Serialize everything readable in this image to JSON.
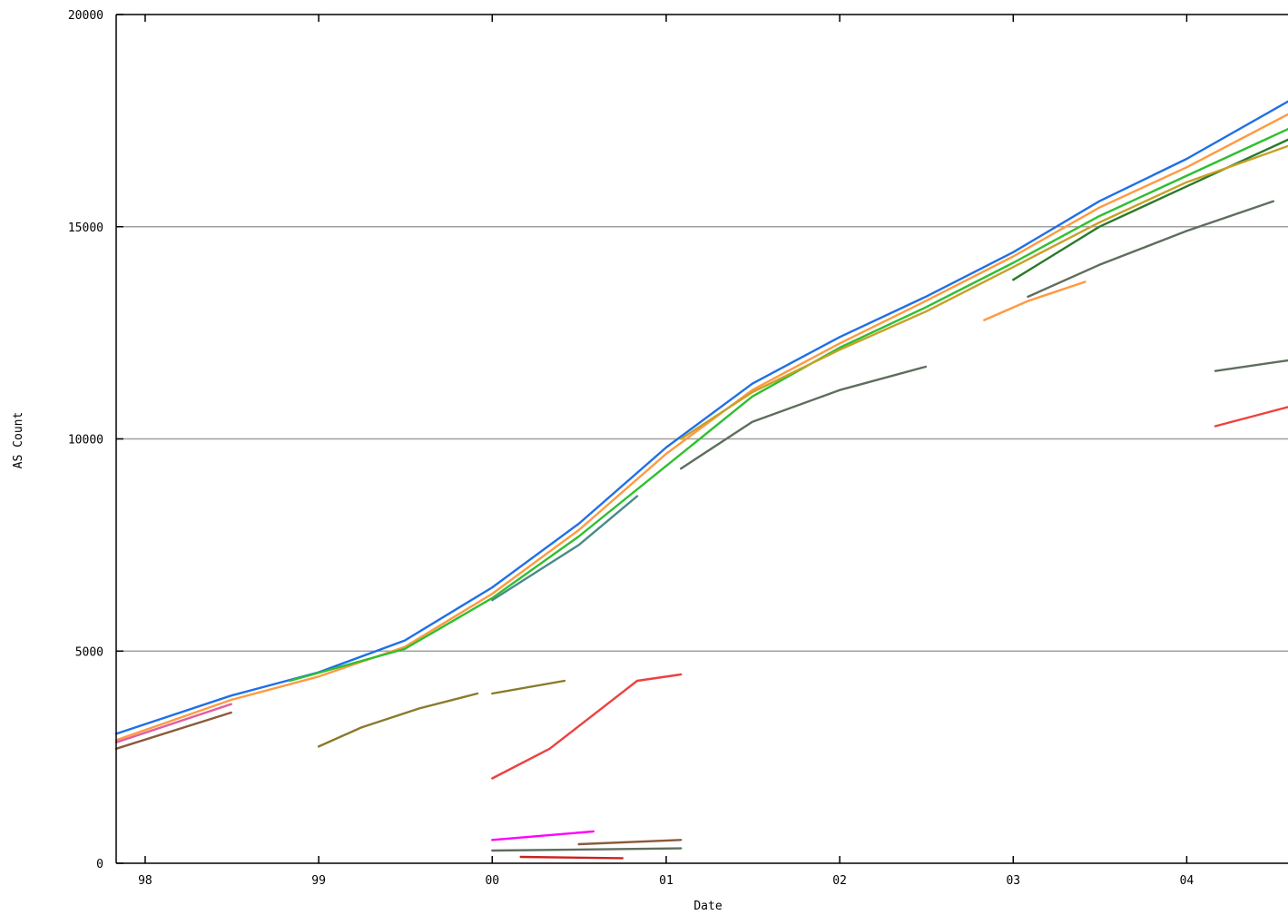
{
  "chart_data": {
    "type": "scatter",
    "title": "",
    "xlabel": "Date",
    "ylabel": "AS Count",
    "xlim": [
      "1997-11-01",
      "2004-08-01"
    ],
    "ylim": [
      0,
      20000
    ],
    "grid": "horizontal",
    "legend": "none",
    "x_ticks": [
      {
        "label": "98",
        "date": "1998-01-01"
      },
      {
        "label": "99",
        "date": "1999-01-01"
      },
      {
        "label": "00",
        "date": "2000-01-01"
      },
      {
        "label": "01",
        "date": "2001-01-01"
      },
      {
        "label": "02",
        "date": "2002-01-01"
      },
      {
        "label": "03",
        "date": "2003-01-01"
      },
      {
        "label": "04",
        "date": "2004-01-01"
      }
    ],
    "y_ticks": [
      {
        "label": "0",
        "value": 0
      },
      {
        "label": "5000",
        "value": 5000
      },
      {
        "label": "10000",
        "value": 10000
      },
      {
        "label": "15000",
        "value": 15000
      },
      {
        "label": "20000",
        "value": 20000
      }
    ],
    "series": [
      {
        "color": "#1f6fe8",
        "points": [
          [
            "1997-11-01",
            3050
          ],
          [
            "1998-07-01",
            3950
          ],
          [
            "1999-01-01",
            4500
          ],
          [
            "1999-07-01",
            5250
          ],
          [
            "2000-01-01",
            6500
          ],
          [
            "2000-07-01",
            8000
          ],
          [
            "2001-01-01",
            9800
          ],
          [
            "2001-07-01",
            11300
          ],
          [
            "2002-01-01",
            12400
          ],
          [
            "2002-07-01",
            13350
          ],
          [
            "2003-01-01",
            14400
          ],
          [
            "2003-07-01",
            15600
          ],
          [
            "2004-01-01",
            16600
          ],
          [
            "2004-08-01",
            17950
          ]
        ]
      },
      {
        "color": "#ff9940",
        "points": [
          [
            "1997-11-01",
            2900
          ],
          [
            "1998-07-01",
            3850
          ],
          [
            "1999-01-01",
            4400
          ],
          [
            "1999-07-01",
            5100
          ],
          [
            "2000-01-01",
            6350
          ],
          [
            "2000-07-01",
            7850
          ],
          [
            "2001-01-01",
            9650
          ],
          [
            "2001-07-01",
            11150
          ],
          [
            "2002-01-01",
            12250
          ],
          [
            "2002-07-01",
            13250
          ],
          [
            "2003-01-01",
            14300
          ],
          [
            "2003-07-01",
            15450
          ],
          [
            "2004-01-01",
            16400
          ],
          [
            "2004-08-01",
            17650
          ]
        ]
      },
      {
        "color": "#2fbf2f",
        "points": [
          [
            "1998-11-01",
            4300
          ],
          [
            "1999-07-01",
            5050
          ],
          [
            "2000-01-01",
            6250
          ],
          [
            "2000-07-01",
            7700
          ],
          [
            "2001-07-01",
            11000
          ],
          [
            "2002-01-01",
            12150
          ],
          [
            "2002-07-01",
            13100
          ],
          [
            "2003-01-01",
            14150
          ],
          [
            "2003-07-01",
            15250
          ],
          [
            "2004-01-01",
            16200
          ],
          [
            "2004-08-01",
            17300
          ]
        ]
      },
      {
        "color": "#2a7a2a",
        "points": [
          [
            "2003-01-01",
            13750
          ],
          [
            "2003-07-01",
            15000
          ],
          [
            "2004-01-01",
            15950
          ],
          [
            "2004-08-01",
            17050
          ]
        ]
      },
      {
        "color": "#c8a028",
        "points": [
          [
            "2001-02-01",
            10000
          ],
          [
            "2001-07-01",
            11100
          ],
          [
            "2002-01-01",
            12100
          ],
          [
            "2002-07-01",
            13000
          ],
          [
            "2003-01-01",
            14050
          ],
          [
            "2003-07-01",
            15100
          ],
          [
            "2004-01-01",
            16050
          ],
          [
            "2004-08-01",
            16900
          ]
        ]
      },
      {
        "color": "#8a5a3a",
        "points": [
          [
            "1997-11-01",
            2700
          ],
          [
            "1998-07-01",
            3550
          ]
        ]
      },
      {
        "color": "#e060a0",
        "points": [
          [
            "1997-11-01",
            2850
          ],
          [
            "1998-07-01",
            3750
          ]
        ]
      },
      {
        "color": "#4a8a8a",
        "points": [
          [
            "2000-01-01",
            6200
          ],
          [
            "2000-07-01",
            7500
          ],
          [
            "2000-11-01",
            8650
          ]
        ]
      },
      {
        "color": "#5e6e5e",
        "points": [
          [
            "2001-02-01",
            9300
          ],
          [
            "2001-07-01",
            10400
          ],
          [
            "2002-01-01",
            11150
          ],
          [
            "2002-07-01",
            11700
          ]
        ]
      },
      {
        "color": "#5e6e5e",
        "points": [
          [
            "2003-02-01",
            13350
          ],
          [
            "2003-07-01",
            14100
          ],
          [
            "2004-01-01",
            14900
          ],
          [
            "2004-07-01",
            15600
          ]
        ]
      },
      {
        "color": "#ff9940",
        "points": [
          [
            "2002-11-01",
            12800
          ],
          [
            "2003-02-01",
            13250
          ],
          [
            "2003-06-01",
            13700
          ]
        ]
      },
      {
        "color": "#8a7a2a",
        "points": [
          [
            "1999-01-01",
            2750
          ],
          [
            "1999-04-01",
            3200
          ],
          [
            "1999-08-01",
            3650
          ],
          [
            "1999-12-01",
            4000
          ]
        ]
      },
      {
        "color": "#8a7a2a",
        "points": [
          [
            "2000-01-01",
            4000
          ],
          [
            "2000-06-01",
            4300
          ]
        ]
      },
      {
        "color": "#ee4040",
        "points": [
          [
            "2000-01-01",
            2000
          ],
          [
            "2000-05-01",
            2700
          ],
          [
            "2000-08-01",
            3500
          ],
          [
            "2000-11-01",
            4300
          ],
          [
            "2001-02-01",
            4450
          ]
        ]
      },
      {
        "color": "#ee4040",
        "points": [
          [
            "2004-03-01",
            10300
          ],
          [
            "2004-08-01",
            10750
          ]
        ]
      },
      {
        "color": "#5e6e5e",
        "points": [
          [
            "2004-03-01",
            11600
          ],
          [
            "2004-08-01",
            11850
          ]
        ]
      },
      {
        "color": "#ff00ff",
        "points": [
          [
            "2000-01-01",
            550
          ],
          [
            "2000-08-01",
            750
          ]
        ]
      },
      {
        "color": "#8a5a3a",
        "points": [
          [
            "2000-07-01",
            450
          ],
          [
            "2001-02-01",
            550
          ]
        ]
      },
      {
        "color": "#5e6e5e",
        "points": [
          [
            "2000-01-01",
            300
          ],
          [
            "2001-02-01",
            350
          ]
        ]
      },
      {
        "color": "#cc2020",
        "points": [
          [
            "2000-03-01",
            150
          ],
          [
            "2000-10-01",
            120
          ]
        ]
      }
    ]
  }
}
